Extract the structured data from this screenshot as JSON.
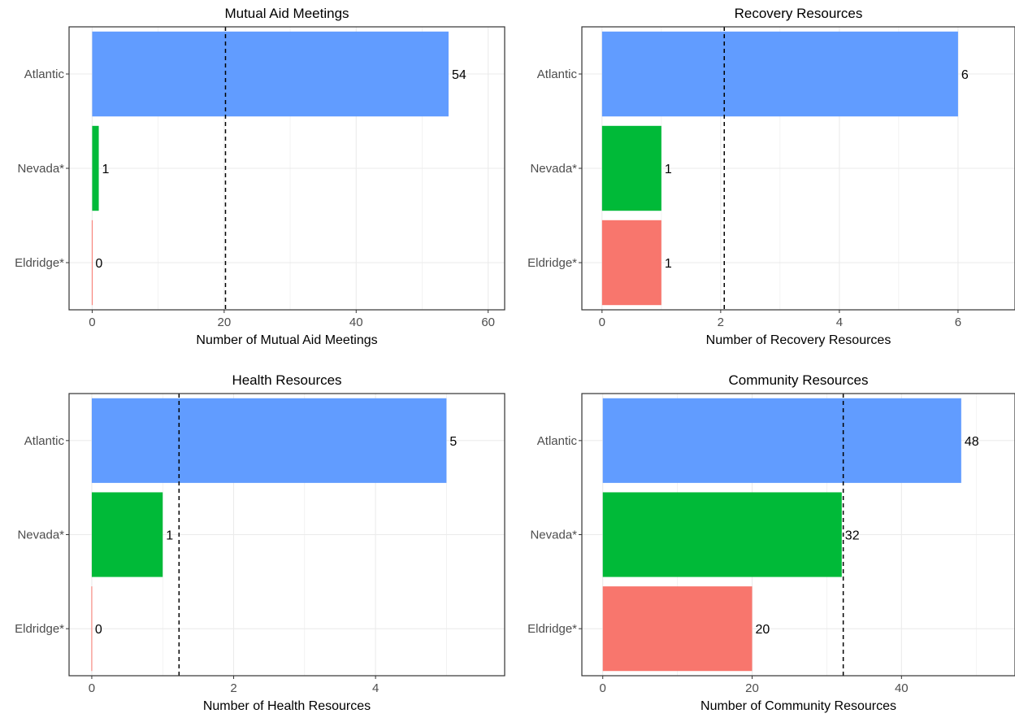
{
  "colors": {
    "Atlantic": "#619CFF",
    "Nevada*": "#00BA38",
    "Eldridge*": "#F8766D",
    "grid": "#EBEBEB",
    "axis_text": "#4D4D4D",
    "reference_line": "#000000"
  },
  "chart_data": [
    {
      "type": "bar",
      "orientation": "horizontal",
      "title": "Mutual Aid Meetings",
      "xlabel": "Number of Mutual Aid Meetings",
      "categories": [
        "Atlantic",
        "Nevada*",
        "Eldridge*"
      ],
      "values": [
        54,
        1,
        0
      ],
      "value_labels": [
        "54",
        "1",
        "0"
      ],
      "xlim": [
        -3.5,
        62.5
      ],
      "xticks": [
        0,
        20,
        40,
        60
      ],
      "xtick_labels": [
        "0",
        "20",
        "40",
        "60"
      ],
      "reference_line": 20.2,
      "grid": true
    },
    {
      "type": "bar",
      "orientation": "horizontal",
      "title": "Recovery Resources",
      "xlabel": "Number of Recovery Resources",
      "categories": [
        "Atlantic",
        "Nevada*",
        "Eldridge*"
      ],
      "values": [
        6,
        1,
        1
      ],
      "value_labels": [
        "6",
        "1",
        "1"
      ],
      "xlim": [
        -0.34,
        6.96
      ],
      "xticks": [
        0,
        2,
        4,
        6
      ],
      "xtick_labels": [
        "0",
        "2",
        "4",
        "6"
      ],
      "reference_line": 2.06,
      "grid": true
    },
    {
      "type": "bar",
      "orientation": "horizontal",
      "title": "Health Resources",
      "xlabel": "Number of Health Resources",
      "categories": [
        "Atlantic",
        "Nevada*",
        "Eldridge*"
      ],
      "values": [
        5,
        1,
        0
      ],
      "value_labels": [
        "5",
        "1",
        "0"
      ],
      "xlim": [
        -0.32,
        5.82
      ],
      "xticks": [
        0,
        2,
        4
      ],
      "xtick_labels": [
        "0",
        "2",
        "4"
      ],
      "reference_line": 1.23,
      "grid": true
    },
    {
      "type": "bar",
      "orientation": "horizontal",
      "title": "Community Resources",
      "xlabel": "Number of Community Resources",
      "categories": [
        "Atlantic",
        "Nevada*",
        "Eldridge*"
      ],
      "values": [
        48,
        32,
        20
      ],
      "value_labels": [
        "48",
        "32",
        "20"
      ],
      "xlim": [
        -2.8,
        55.2
      ],
      "xticks": [
        0,
        20,
        40
      ],
      "xtick_labels": [
        "0",
        "20",
        "40"
      ],
      "reference_line": 32.2,
      "grid": true
    }
  ]
}
